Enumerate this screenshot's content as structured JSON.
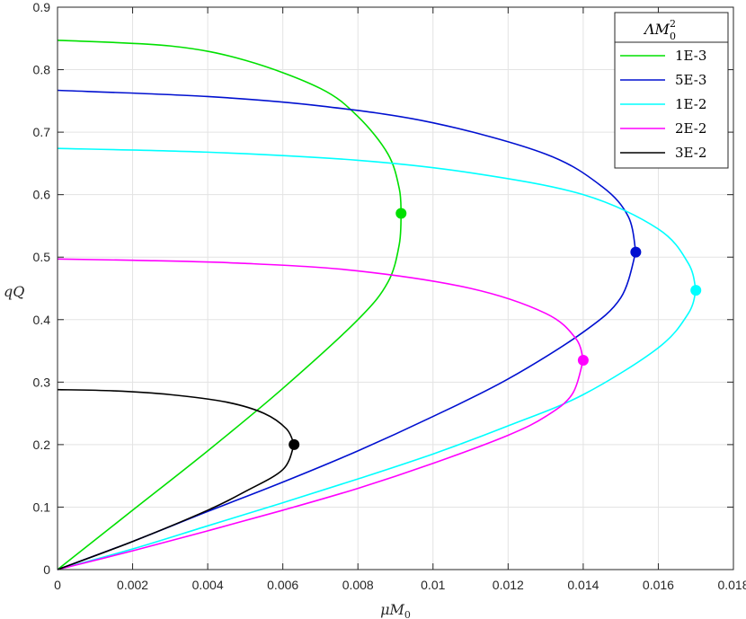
{
  "chart_data": {
    "type": "line",
    "xlabel": "μM",
    "xlabel_sub": "0",
    "ylabel": "qQ",
    "xlim": [
      0,
      0.018
    ],
    "ylim": [
      0,
      0.9
    ],
    "x_ticks": [
      "0",
      "0.002",
      "0.004",
      "0.006",
      "0.008",
      "0.01",
      "0.012",
      "0.014",
      "0.016",
      "0.018"
    ],
    "x_tick_values": [
      0,
      0.002,
      0.004,
      0.006,
      0.008,
      0.01,
      0.012,
      0.014,
      0.016,
      0.018
    ],
    "y_ticks": [
      "0",
      "0.1",
      "0.2",
      "0.3",
      "0.4",
      "0.5",
      "0.6",
      "0.7",
      "0.8",
      "0.9"
    ],
    "y_tick_values": [
      0,
      0.1,
      0.2,
      0.3,
      0.4,
      0.5,
      0.6,
      0.7,
      0.8,
      0.9
    ],
    "grid": true,
    "legend": {
      "title": "ΛM",
      "title_sub": "0",
      "title_sup": "2",
      "placement": "top-right"
    },
    "series": [
      {
        "name": "1E-3",
        "color": "#00e000",
        "lower": [
          [
            0,
            0
          ],
          [
            0.002,
            0.095
          ],
          [
            0.004,
            0.19
          ],
          [
            0.006,
            0.29
          ],
          [
            0.008,
            0.4
          ],
          [
            0.0088,
            0.46
          ],
          [
            0.0091,
            0.52
          ],
          [
            0.00915,
            0.57
          ]
        ],
        "upper": [
          [
            0.00915,
            0.57
          ],
          [
            0.0091,
            0.61
          ],
          [
            0.0088,
            0.665
          ],
          [
            0.008,
            0.725
          ],
          [
            0.007,
            0.77
          ],
          [
            0.005,
            0.815
          ],
          [
            0.003,
            0.838
          ],
          [
            0,
            0.847
          ]
        ],
        "marker": [
          0.00915,
          0.57
        ]
      },
      {
        "name": "5E-3",
        "color": "#0010d0",
        "lower": [
          [
            0,
            0
          ],
          [
            0.002,
            0.045
          ],
          [
            0.004,
            0.093
          ],
          [
            0.006,
            0.14
          ],
          [
            0.008,
            0.19
          ],
          [
            0.01,
            0.245
          ],
          [
            0.012,
            0.305
          ],
          [
            0.014,
            0.38
          ],
          [
            0.015,
            0.435
          ],
          [
            0.0154,
            0.508
          ]
        ],
        "upper": [
          [
            0.0154,
            0.508
          ],
          [
            0.0152,
            0.565
          ],
          [
            0.0145,
            0.613
          ],
          [
            0.013,
            0.665
          ],
          [
            0.01,
            0.715
          ],
          [
            0.007,
            0.742
          ],
          [
            0.004,
            0.757
          ],
          [
            0,
            0.767
          ]
        ],
        "marker": [
          0.0154,
          0.508
        ]
      },
      {
        "name": "1E-2",
        "color": "#00ffff",
        "lower": [
          [
            0,
            0
          ],
          [
            0.002,
            0.033
          ],
          [
            0.004,
            0.07
          ],
          [
            0.006,
            0.107
          ],
          [
            0.008,
            0.145
          ],
          [
            0.01,
            0.185
          ],
          [
            0.012,
            0.23
          ],
          [
            0.014,
            0.28
          ],
          [
            0.016,
            0.355
          ],
          [
            0.0168,
            0.41
          ],
          [
            0.017,
            0.447
          ]
        ],
        "upper": [
          [
            0.017,
            0.447
          ],
          [
            0.0168,
            0.49
          ],
          [
            0.016,
            0.545
          ],
          [
            0.014,
            0.6
          ],
          [
            0.011,
            0.635
          ],
          [
            0.008,
            0.655
          ],
          [
            0.004,
            0.668
          ],
          [
            0,
            0.674
          ]
        ],
        "marker": [
          0.017,
          0.447
        ]
      },
      {
        "name": "2E-2",
        "color": "#ff00ff",
        "lower": [
          [
            0,
            0
          ],
          [
            0.002,
            0.03
          ],
          [
            0.004,
            0.062
          ],
          [
            0.006,
            0.095
          ],
          [
            0.008,
            0.13
          ],
          [
            0.01,
            0.17
          ],
          [
            0.012,
            0.215
          ],
          [
            0.013,
            0.245
          ],
          [
            0.0137,
            0.28
          ],
          [
            0.014,
            0.335
          ]
        ],
        "upper": [
          [
            0.014,
            0.335
          ],
          [
            0.0138,
            0.37
          ],
          [
            0.013,
            0.41
          ],
          [
            0.011,
            0.45
          ],
          [
            0.008,
            0.478
          ],
          [
            0.005,
            0.49
          ],
          [
            0.002,
            0.495
          ],
          [
            0,
            0.497
          ]
        ],
        "marker": [
          0.014,
          0.335
        ]
      },
      {
        "name": "3E-2",
        "color": "#000000",
        "lower": [
          [
            0,
            0
          ],
          [
            0.002,
            0.045
          ],
          [
            0.004,
            0.095
          ],
          [
            0.005,
            0.125
          ],
          [
            0.006,
            0.16
          ],
          [
            0.0063,
            0.2
          ]
        ],
        "upper": [
          [
            0.0063,
            0.2
          ],
          [
            0.0061,
            0.225
          ],
          [
            0.0055,
            0.25
          ],
          [
            0.0045,
            0.268
          ],
          [
            0.003,
            0.28
          ],
          [
            0.0015,
            0.286
          ],
          [
            0,
            0.288
          ]
        ],
        "marker": [
          0.0063,
          0.2
        ]
      }
    ]
  }
}
